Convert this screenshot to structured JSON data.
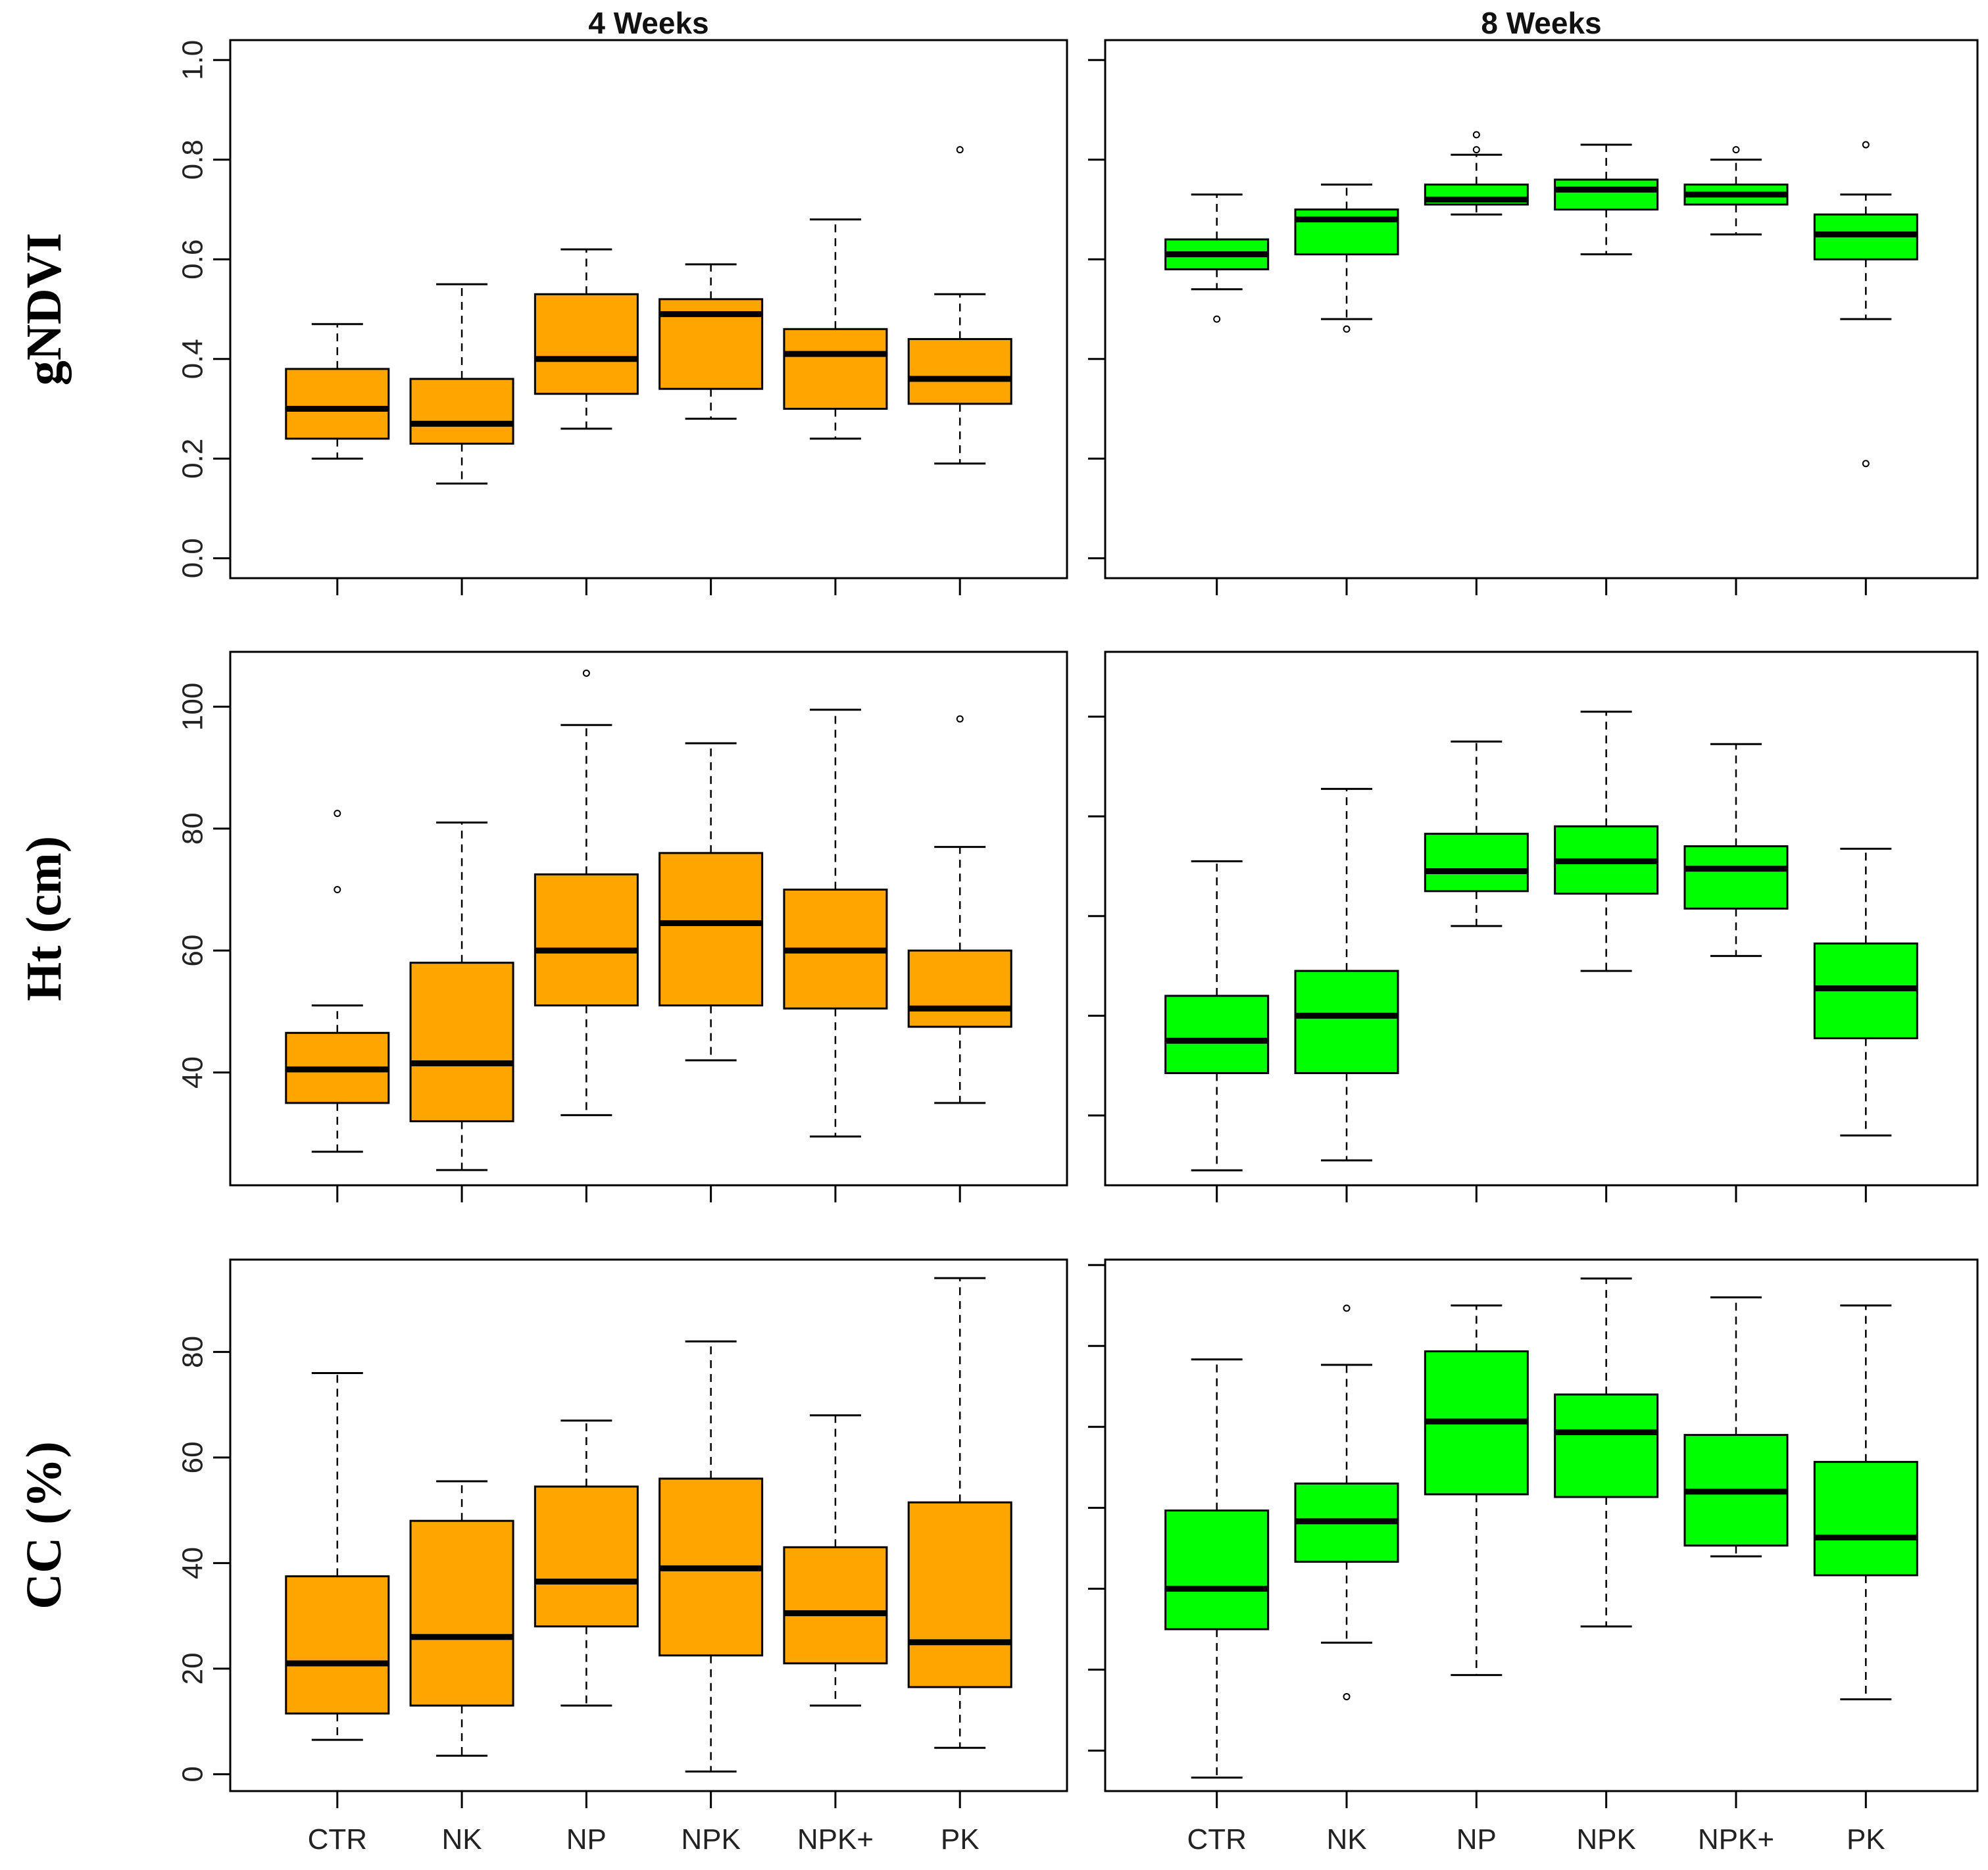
{
  "chart_data": [
    {
      "type": "boxplot",
      "id": "gndvi-4w",
      "row": 0,
      "col": 0,
      "title": "4 Weeks",
      "ylabel": "gNDVI",
      "xlabel": "",
      "ylim": [
        -0.04,
        1.04
      ],
      "yticks": [
        0.0,
        0.2,
        0.4,
        0.6,
        0.8,
        1.0
      ],
      "ytick_labels": [
        "0.0",
        "0.2",
        "0.4",
        "0.6",
        "0.8",
        "1.0"
      ],
      "fill_color": "#FFA500",
      "show_y_labels": true,
      "show_x_labels": false,
      "categories": [
        "CTR",
        "NK",
        "NP",
        "NPK",
        "NPK+",
        "PK"
      ],
      "boxes": [
        {
          "category": "CTR",
          "whisker_low": 0.2,
          "q1": 0.24,
          "median": 0.3,
          "q3": 0.38,
          "whisker_high": 0.47,
          "outliers": []
        },
        {
          "category": "NK",
          "whisker_low": 0.15,
          "q1": 0.23,
          "median": 0.27,
          "q3": 0.36,
          "whisker_high": 0.55,
          "outliers": []
        },
        {
          "category": "NP",
          "whisker_low": 0.26,
          "q1": 0.33,
          "median": 0.4,
          "q3": 0.53,
          "whisker_high": 0.62,
          "outliers": []
        },
        {
          "category": "NPK",
          "whisker_low": 0.28,
          "q1": 0.34,
          "median": 0.49,
          "q3": 0.52,
          "whisker_high": 0.59,
          "outliers": []
        },
        {
          "category": "NPK+",
          "whisker_low": 0.24,
          "q1": 0.3,
          "median": 0.41,
          "q3": 0.46,
          "whisker_high": 0.68,
          "outliers": []
        },
        {
          "category": "PK",
          "whisker_low": 0.19,
          "q1": 0.31,
          "median": 0.36,
          "q3": 0.44,
          "whisker_high": 0.53,
          "outliers": [
            0.82
          ]
        }
      ]
    },
    {
      "type": "boxplot",
      "id": "gndvi-8w",
      "row": 0,
      "col": 1,
      "title": "8 Weeks",
      "ylabel": "",
      "xlabel": "",
      "ylim": [
        -0.04,
        1.04
      ],
      "yticks": [
        0.0,
        0.2,
        0.4,
        0.6,
        0.8,
        1.0
      ],
      "fill_color": "#00FF00",
      "show_y_labels": false,
      "show_x_labels": false,
      "categories": [
        "CTR",
        "NK",
        "NP",
        "NPK",
        "NPK+",
        "PK"
      ],
      "boxes": [
        {
          "category": "CTR",
          "whisker_low": 0.54,
          "q1": 0.58,
          "median": 0.61,
          "q3": 0.64,
          "whisker_high": 0.73,
          "outliers": [
            0.48
          ]
        },
        {
          "category": "NK",
          "whisker_low": 0.48,
          "q1": 0.61,
          "median": 0.68,
          "q3": 0.7,
          "whisker_high": 0.75,
          "outliers": [
            0.46
          ]
        },
        {
          "category": "NP",
          "whisker_low": 0.69,
          "q1": 0.71,
          "median": 0.72,
          "q3": 0.75,
          "whisker_high": 0.81,
          "outliers": [
            0.82,
            0.85
          ]
        },
        {
          "category": "NPK",
          "whisker_low": 0.61,
          "q1": 0.7,
          "median": 0.74,
          "q3": 0.76,
          "whisker_high": 0.83,
          "outliers": []
        },
        {
          "category": "NPK+",
          "whisker_low": 0.65,
          "q1": 0.71,
          "median": 0.73,
          "q3": 0.75,
          "whisker_high": 0.8,
          "outliers": [
            0.82
          ]
        },
        {
          "category": "PK",
          "whisker_low": 0.48,
          "q1": 0.6,
          "median": 0.65,
          "q3": 0.69,
          "whisker_high": 0.73,
          "outliers": [
            0.83,
            0.19
          ]
        }
      ]
    },
    {
      "type": "boxplot",
      "id": "ht-4w",
      "row": 1,
      "col": 0,
      "title": "",
      "ylabel": "Ht (cm)",
      "xlabel": "",
      "ylim": [
        21.5,
        109
      ],
      "yticks": [
        40,
        60,
        80,
        100
      ],
      "ytick_labels": [
        "40",
        "60",
        "80",
        "100"
      ],
      "fill_color": "#FFA500",
      "show_y_labels": true,
      "show_x_labels": false,
      "categories": [
        "CTR",
        "NK",
        "NP",
        "NPK",
        "NPK+",
        "PK"
      ],
      "boxes": [
        {
          "category": "CTR",
          "whisker_low": 27,
          "q1": 35,
          "median": 40.5,
          "q3": 46.5,
          "whisker_high": 51,
          "outliers": [
            70,
            82.5
          ]
        },
        {
          "category": "NK",
          "whisker_low": 24,
          "q1": 32,
          "median": 41.5,
          "q3": 58,
          "whisker_high": 81,
          "outliers": []
        },
        {
          "category": "NP",
          "whisker_low": 33,
          "q1": 51,
          "median": 60,
          "q3": 72.5,
          "whisker_high": 97,
          "outliers": [
            105.5
          ]
        },
        {
          "category": "NPK",
          "whisker_low": 42,
          "q1": 51,
          "median": 64.5,
          "q3": 76,
          "whisker_high": 94,
          "outliers": []
        },
        {
          "category": "NPK+",
          "whisker_low": 29.5,
          "q1": 50.5,
          "median": 60,
          "q3": 70,
          "whisker_high": 99.5,
          "outliers": []
        },
        {
          "category": "PK",
          "whisker_low": 35,
          "q1": 47.5,
          "median": 50.5,
          "q3": 60,
          "whisker_high": 77,
          "outliers": [
            98
          ]
        }
      ]
    },
    {
      "type": "boxplot",
      "id": "ht-8w",
      "row": 1,
      "col": 1,
      "title": "",
      "ylabel": "",
      "xlabel": "",
      "ylim": [
        46,
        153
      ],
      "yticks": [
        60,
        80,
        100,
        120,
        140
      ],
      "fill_color": "#00FF00",
      "show_y_labels": false,
      "show_x_labels": false,
      "categories": [
        "CTR",
        "NK",
        "NP",
        "NPK",
        "NPK+",
        "PK"
      ],
      "boxes": [
        {
          "category": "CTR",
          "whisker_low": 49,
          "q1": 68.5,
          "median": 75,
          "q3": 84,
          "whisker_high": 111,
          "outliers": []
        },
        {
          "category": "NK",
          "whisker_low": 51,
          "q1": 68.5,
          "median": 80,
          "q3": 89,
          "whisker_high": 125.5,
          "outliers": []
        },
        {
          "category": "NP",
          "whisker_low": 98,
          "q1": 105,
          "median": 109,
          "q3": 116.5,
          "whisker_high": 135,
          "outliers": []
        },
        {
          "category": "NPK",
          "whisker_low": 89,
          "q1": 104.5,
          "median": 111,
          "q3": 118,
          "whisker_high": 141,
          "outliers": []
        },
        {
          "category": "NPK+",
          "whisker_low": 92,
          "q1": 101.5,
          "median": 109.5,
          "q3": 114,
          "whisker_high": 134.5,
          "outliers": []
        },
        {
          "category": "PK",
          "whisker_low": 56,
          "q1": 75.5,
          "median": 85.5,
          "q3": 94.5,
          "whisker_high": 113.5,
          "outliers": []
        }
      ]
    },
    {
      "type": "boxplot",
      "id": "cc-4w",
      "row": 2,
      "col": 0,
      "title": "",
      "ylabel": "CC (%)",
      "xlabel": "",
      "ylim": [
        -3.2,
        97.5
      ],
      "yticks": [
        0,
        20,
        40,
        60,
        80
      ],
      "ytick_labels": [
        "0",
        "20",
        "40",
        "60",
        "80"
      ],
      "fill_color": "#FFA500",
      "show_y_labels": true,
      "show_x_labels": true,
      "categories": [
        "CTR",
        "NK",
        "NP",
        "NPK",
        "NPK+",
        "PK"
      ],
      "boxes": [
        {
          "category": "CTR",
          "whisker_low": 6.5,
          "q1": 11.5,
          "median": 21,
          "q3": 37.5,
          "whisker_high": 76,
          "outliers": []
        },
        {
          "category": "NK",
          "whisker_low": 3.5,
          "q1": 13,
          "median": 26,
          "q3": 48,
          "whisker_high": 55.5,
          "outliers": []
        },
        {
          "category": "NP",
          "whisker_low": 13,
          "q1": 28,
          "median": 36.5,
          "q3": 54.5,
          "whisker_high": 67,
          "outliers": []
        },
        {
          "category": "NPK",
          "whisker_low": 0.5,
          "q1": 22.5,
          "median": 39,
          "q3": 56,
          "whisker_high": 82,
          "outliers": []
        },
        {
          "category": "NPK+",
          "whisker_low": 13,
          "q1": 21,
          "median": 30.5,
          "q3": 43,
          "whisker_high": 68,
          "outliers": []
        },
        {
          "category": "PK",
          "whisker_low": 5,
          "q1": 16.5,
          "median": 25,
          "q3": 51.5,
          "whisker_high": 94,
          "outliers": []
        }
      ]
    },
    {
      "type": "boxplot",
      "id": "cc-8w",
      "row": 2,
      "col": 1,
      "title": "",
      "ylabel": "",
      "xlabel": "",
      "ylim": [
        -2.5,
        96
      ],
      "yticks": [
        5,
        20,
        35,
        50,
        65,
        80,
        95
      ],
      "fill_color": "#00FF00",
      "show_y_labels": false,
      "show_x_labels": true,
      "categories": [
        "CTR",
        "NK",
        "NP",
        "NPK",
        "NPK+",
        "PK"
      ],
      "boxes": [
        {
          "category": "CTR",
          "whisker_low": 0,
          "q1": 27.5,
          "median": 35,
          "q3": 49.5,
          "whisker_high": 77.5,
          "outliers": []
        },
        {
          "category": "NK",
          "whisker_low": 25,
          "q1": 40,
          "median": 47.5,
          "q3": 54.5,
          "whisker_high": 76.5,
          "outliers": [
            87,
            15
          ]
        },
        {
          "category": "NP",
          "whisker_low": 19,
          "q1": 52.5,
          "median": 66,
          "q3": 79,
          "whisker_high": 87.5,
          "outliers": []
        },
        {
          "category": "NPK",
          "whisker_low": 28,
          "q1": 52,
          "median": 64,
          "q3": 71,
          "whisker_high": 92.5,
          "outliers": []
        },
        {
          "category": "NPK+",
          "whisker_low": 41,
          "q1": 43,
          "median": 53,
          "q3": 63.5,
          "whisker_high": 89,
          "outliers": []
        },
        {
          "category": "PK",
          "whisker_low": 14.5,
          "q1": 37.5,
          "median": 44.5,
          "q3": 58.5,
          "whisker_high": 87.5,
          "outliers": []
        }
      ]
    }
  ]
}
